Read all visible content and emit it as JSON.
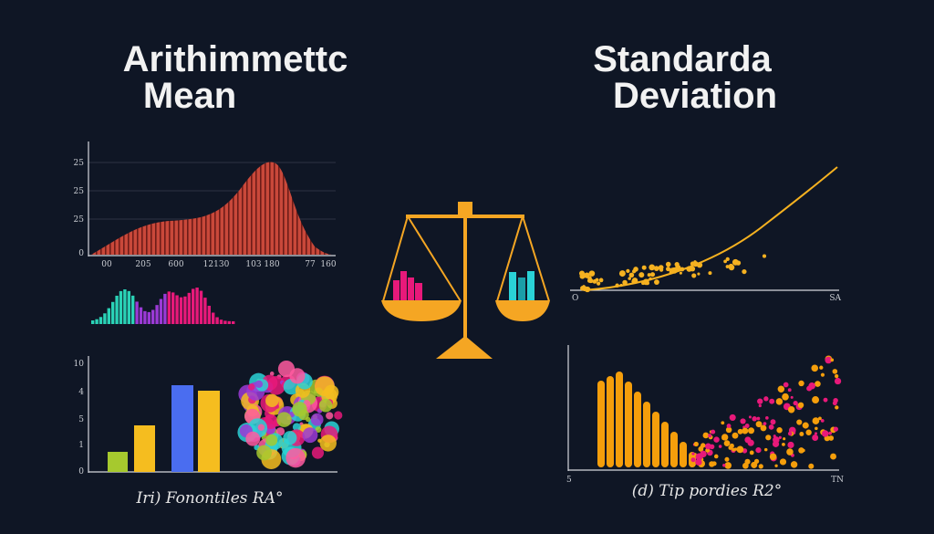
{
  "left": {
    "title": [
      "Arithimmettc",
      "Mean"
    ],
    "area_chart": {
      "yticks": [
        "25",
        "25",
        "25",
        "0"
      ],
      "xticks": [
        "00",
        "205",
        "600",
        "12130",
        "103",
        "180",
        "77",
        "160"
      ]
    },
    "bar_chart": {
      "yticks": [
        "10",
        "4",
        "5",
        "1",
        "0"
      ]
    },
    "caption": "Iri) Fonontiles RA°"
  },
  "right": {
    "title": [
      "Standarda",
      "Deviation"
    ],
    "scatter": {
      "x_start": "O",
      "x_end": "SA"
    },
    "histogram": {
      "x_start": "5",
      "x_end": "TN"
    },
    "caption": "(d) Tip pordies R2°"
  }
}
